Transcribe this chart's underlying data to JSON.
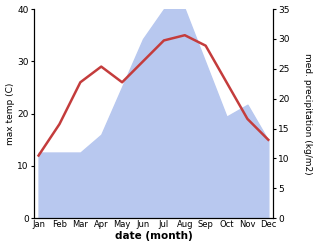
{
  "months": [
    "Jan",
    "Feb",
    "Mar",
    "Apr",
    "May",
    "Jun",
    "Jul",
    "Aug",
    "Sep",
    "Oct",
    "Nov",
    "Dec"
  ],
  "temperature": [
    12,
    18,
    26,
    29,
    26,
    30,
    34,
    35,
    33,
    26,
    19,
    15
  ],
  "precipitation": [
    11,
    11,
    11,
    14,
    22,
    30,
    35,
    35,
    26,
    17,
    19,
    13
  ],
  "temp_color": "#c43c3c",
  "precip_fill_color": "#b8c8ef",
  "ylabel_left": "max temp (C)",
  "ylabel_right": "med. precipitation (kg/m2)",
  "xlabel": "date (month)",
  "ylim_left": [
    0,
    40
  ],
  "ylim_right": [
    0,
    35
  ],
  "yticks_left": [
    0,
    10,
    20,
    30,
    40
  ],
  "yticks_right": [
    0,
    5,
    10,
    15,
    20,
    25,
    30,
    35
  ],
  "line_width": 1.8
}
